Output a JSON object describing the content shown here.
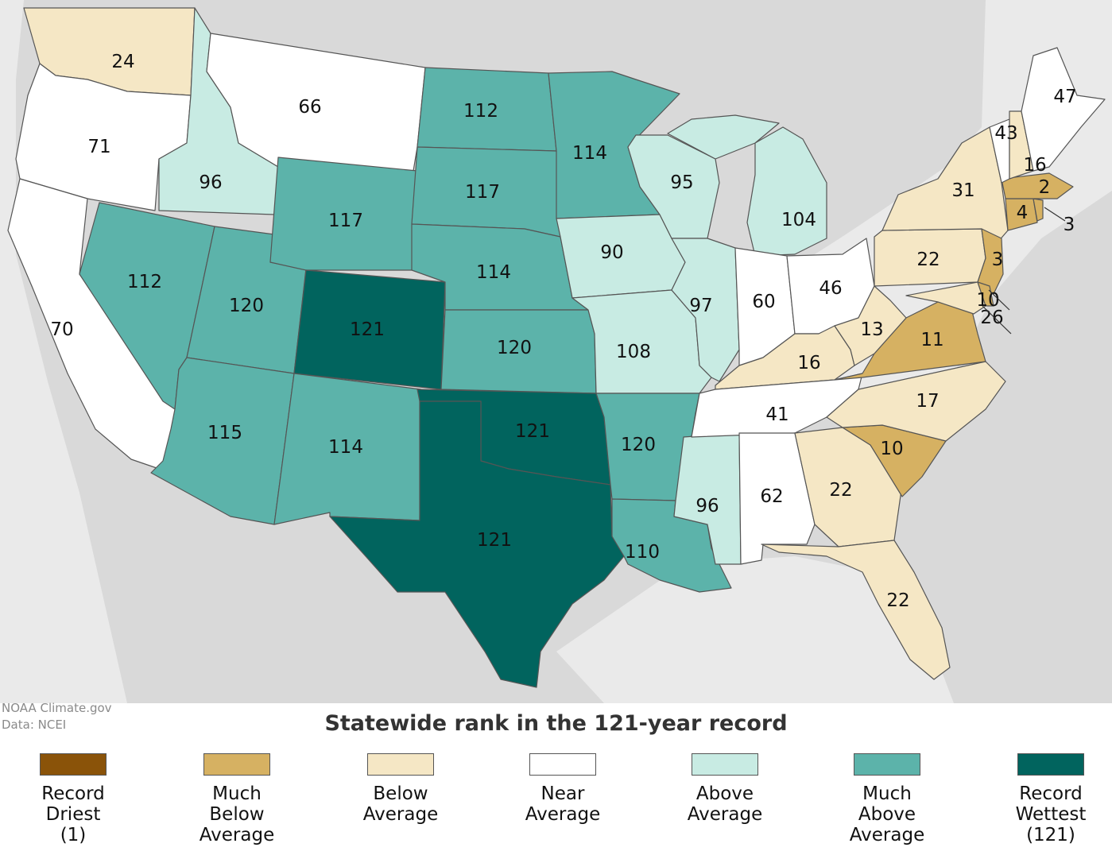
{
  "colors": {
    "record_driest": "#8a5309",
    "much_below": "#d6b162",
    "below": "#f5e7c5",
    "near": "#ffffff",
    "above": "#c8ebe3",
    "much_above": "#5cb3aa",
    "record_wettest": "#01645e",
    "land_bg": "#d9d9d9"
  },
  "credit": {
    "line1": "NOAA Climate.gov",
    "line2": "Data: NCEI"
  },
  "title": "Statewide rank in the 121-year record",
  "legend": [
    {
      "label": "Record\nDriest\n(1)",
      "color_key": "record_driest"
    },
    {
      "label": "Much\nBelow\nAverage",
      "color_key": "much_below"
    },
    {
      "label": "Below\nAverage",
      "color_key": "below"
    },
    {
      "label": "Near\nAverage",
      "color_key": "near"
    },
    {
      "label": "Above\nAverage",
      "color_key": "above"
    },
    {
      "label": "Much\nAbove\nAverage",
      "color_key": "much_above"
    },
    {
      "label": "Record\nWettest\n(121)",
      "color_key": "record_wettest"
    }
  ],
  "states": [
    {
      "name": "WA",
      "rank": "24",
      "category": "below"
    },
    {
      "name": "OR",
      "rank": "71",
      "category": "near"
    },
    {
      "name": "CA",
      "rank": "70",
      "category": "near"
    },
    {
      "name": "ID",
      "rank": "96",
      "category": "above"
    },
    {
      "name": "MT",
      "rank": "66",
      "category": "near"
    },
    {
      "name": "NV",
      "rank": "112",
      "category": "much_above"
    },
    {
      "name": "UT",
      "rank": "120",
      "category": "much_above"
    },
    {
      "name": "AZ",
      "rank": "115",
      "category": "much_above"
    },
    {
      "name": "WY",
      "rank": "117",
      "category": "much_above"
    },
    {
      "name": "CO",
      "rank": "121",
      "category": "record_wettest"
    },
    {
      "name": "NM",
      "rank": "114",
      "category": "much_above"
    },
    {
      "name": "ND",
      "rank": "112",
      "category": "much_above"
    },
    {
      "name": "SD",
      "rank": "117",
      "category": "much_above"
    },
    {
      "name": "NE",
      "rank": "114",
      "category": "much_above"
    },
    {
      "name": "KS",
      "rank": "120",
      "category": "much_above"
    },
    {
      "name": "OK",
      "rank": "121",
      "category": "record_wettest"
    },
    {
      "name": "TX",
      "rank": "121",
      "category": "record_wettest"
    },
    {
      "name": "MN",
      "rank": "114",
      "category": "much_above"
    },
    {
      "name": "IA",
      "rank": "90",
      "category": "above"
    },
    {
      "name": "MO",
      "rank": "108",
      "category": "above"
    },
    {
      "name": "AR",
      "rank": "120",
      "category": "much_above"
    },
    {
      "name": "LA",
      "rank": "110",
      "category": "much_above"
    },
    {
      "name": "WI",
      "rank": "95",
      "category": "above"
    },
    {
      "name": "IL",
      "rank": "97",
      "category": "above"
    },
    {
      "name": "MI",
      "rank": "104",
      "category": "above"
    },
    {
      "name": "MS",
      "rank": "96",
      "category": "above"
    },
    {
      "name": "IN",
      "rank": "60",
      "category": "near"
    },
    {
      "name": "OH",
      "rank": "46",
      "category": "near"
    },
    {
      "name": "KY",
      "rank": "16",
      "category": "below"
    },
    {
      "name": "TN",
      "rank": "41",
      "category": "near"
    },
    {
      "name": "AL",
      "rank": "62",
      "category": "near"
    },
    {
      "name": "GA",
      "rank": "22",
      "category": "below"
    },
    {
      "name": "FL",
      "rank": "22",
      "category": "below"
    },
    {
      "name": "SC",
      "rank": "10",
      "category": "much_below"
    },
    {
      "name": "NC",
      "rank": "17",
      "category": "below"
    },
    {
      "name": "VA",
      "rank": "11",
      "category": "much_below"
    },
    {
      "name": "WV",
      "rank": "13",
      "category": "below"
    },
    {
      "name": "PA",
      "rank": "22",
      "category": "below"
    },
    {
      "name": "NY",
      "rank": "31",
      "category": "below"
    },
    {
      "name": "NJ",
      "rank": "3",
      "category": "much_below"
    },
    {
      "name": "MD",
      "rank": "26",
      "category": "below"
    },
    {
      "name": "DE",
      "rank": "10",
      "category": "much_below"
    },
    {
      "name": "CT",
      "rank": "4",
      "category": "much_below"
    },
    {
      "name": "RI",
      "rank": "3",
      "category": "much_below"
    },
    {
      "name": "MA",
      "rank": "2",
      "category": "much_below"
    },
    {
      "name": "VT",
      "rank": "43",
      "category": "near"
    },
    {
      "name": "NH",
      "rank": "16",
      "category": "below"
    },
    {
      "name": "ME",
      "rank": "47",
      "category": "near"
    }
  ]
}
